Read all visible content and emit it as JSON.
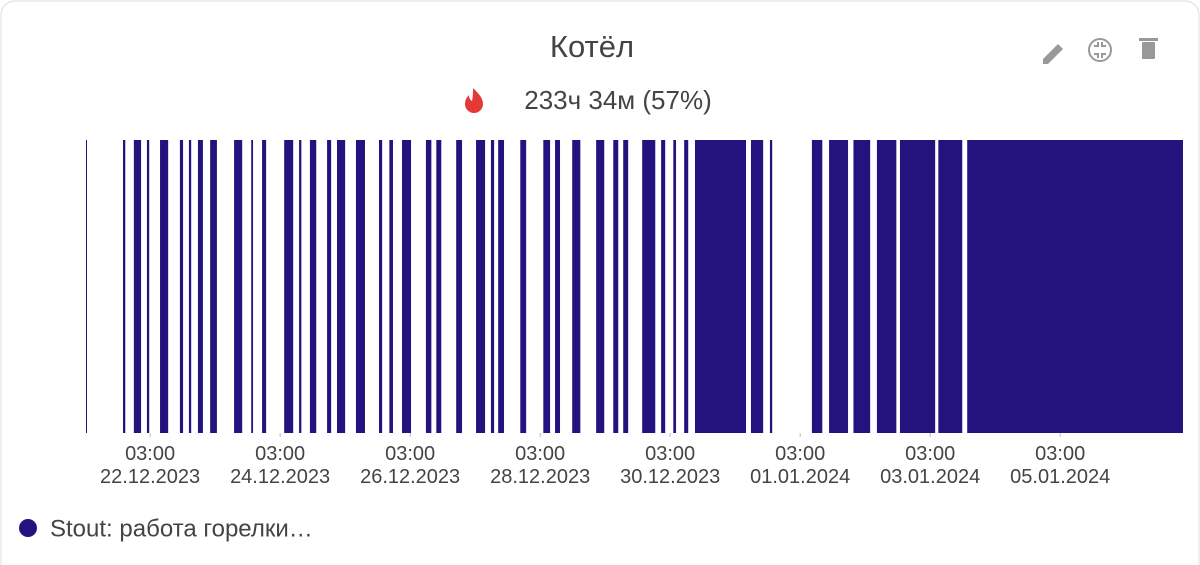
{
  "chart_data": {
    "type": "timeline",
    "title": "Котёл",
    "subtitle": "233ч 34м (57%)",
    "xlim": [
      "2023-12-21T03:20",
      "2024-01-07T00:20"
    ],
    "xticks": [
      {
        "value": "2023-12-22T03:00",
        "label": "03:00\n22.12.2023"
      },
      {
        "value": "2023-12-24T03:00",
        "label": "03:00\n24.12.2023"
      },
      {
        "value": "2023-12-26T03:00",
        "label": "03:00\n26.12.2023"
      },
      {
        "value": "2023-12-28T03:00",
        "label": "03:00\n28.12.2023"
      },
      {
        "value": "2023-12-30T03:00",
        "label": "03:00\n30.12.2023"
      },
      {
        "value": "2024-01-01T03:00",
        "label": "03:00\n01.01.2024"
      },
      {
        "value": "2024-01-03T03:00",
        "label": "03:00\n03.01.2024"
      },
      {
        "value": "2024-01-05T03:00",
        "label": "03:00\n05.01.2024"
      }
    ],
    "series": [
      {
        "name": "Stout: работа горелки…",
        "color": "#24137f",
        "intervals": [
          [
            "2023-12-21T03:20",
            "2023-12-21T03:40"
          ],
          [
            "2023-12-21T17:00",
            "2023-12-21T17:50"
          ],
          [
            "2023-12-21T21:00",
            "2023-12-21T23:40"
          ],
          [
            "2023-12-22T01:50",
            "2023-12-22T02:40"
          ],
          [
            "2023-12-22T06:40",
            "2023-12-22T09:40"
          ],
          [
            "2023-12-22T14:00",
            "2023-12-22T15:10"
          ],
          [
            "2023-12-22T17:20",
            "2023-12-22T18:10"
          ],
          [
            "2023-12-22T20:40",
            "2023-12-22T22:30"
          ],
          [
            "2023-12-23T01:10",
            "2023-12-23T03:40"
          ],
          [
            "2023-12-23T10:00",
            "2023-12-23T13:00"
          ],
          [
            "2023-12-23T16:20",
            "2023-12-23T17:00"
          ],
          [
            "2023-12-23T20:20",
            "2023-12-23T21:50"
          ],
          [
            "2023-12-24T04:30",
            "2023-12-24T07:50"
          ],
          [
            "2023-12-24T10:00",
            "2023-12-24T10:50"
          ],
          [
            "2023-12-24T14:00",
            "2023-12-24T16:20"
          ],
          [
            "2023-12-24T20:20",
            "2023-12-24T21:50"
          ],
          [
            "2023-12-25T00:00",
            "2023-12-25T03:00"
          ],
          [
            "2023-12-25T07:00",
            "2023-12-25T10:20"
          ],
          [
            "2023-12-25T15:30",
            "2023-12-25T16:40"
          ],
          [
            "2023-12-25T19:20",
            "2023-12-25T20:40"
          ],
          [
            "2023-12-26T00:00",
            "2023-12-26T03:20"
          ],
          [
            "2023-12-26T08:50",
            "2023-12-26T10:50"
          ],
          [
            "2023-12-26T12:40",
            "2023-12-26T14:30"
          ],
          [
            "2023-12-26T20:00",
            "2023-12-26T22:10"
          ],
          [
            "2023-12-27T03:20",
            "2023-12-27T06:40"
          ],
          [
            "2023-12-27T08:50",
            "2023-12-27T10:00"
          ],
          [
            "2023-12-27T11:30",
            "2023-12-27T13:40"
          ],
          [
            "2023-12-27T19:40",
            "2023-12-27T21:50"
          ],
          [
            "2023-12-28T04:10",
            "2023-12-28T06:40"
          ],
          [
            "2023-12-28T08:30",
            "2023-12-28T10:20"
          ],
          [
            "2023-12-28T14:50",
            "2023-12-28T17:50"
          ],
          [
            "2023-12-28T23:40",
            "2023-12-29T02:40"
          ],
          [
            "2023-12-29T06:00",
            "2023-12-29T07:50"
          ],
          [
            "2023-12-29T09:40",
            "2023-12-29T11:30"
          ],
          [
            "2023-12-29T16:40",
            "2023-12-29T21:30"
          ],
          [
            "2023-12-29T23:40",
            "2023-12-30T01:10"
          ],
          [
            "2023-12-30T04:10",
            "2023-12-30T05:10"
          ],
          [
            "2023-12-30T08:10",
            "2023-12-30T09:40"
          ],
          [
            "2023-12-30T12:10",
            "2023-12-31T07:00"
          ],
          [
            "2023-12-31T08:50",
            "2023-12-31T13:20"
          ],
          [
            "2023-12-31T15:50",
            "2023-12-31T16:40"
          ],
          [
            "2024-01-01T07:20",
            "2024-01-01T11:10"
          ],
          [
            "2024-01-01T13:40",
            "2024-01-01T20:40"
          ],
          [
            "2024-01-01T22:40",
            "2024-01-02T04:50"
          ],
          [
            "2024-01-02T07:20",
            "2024-01-02T14:30"
          ],
          [
            "2024-01-02T15:50",
            "2024-01-03T04:50"
          ],
          [
            "2024-01-03T06:00",
            "2024-01-03T14:50"
          ],
          [
            "2024-01-03T16:40",
            "2024-01-07T00:20"
          ]
        ]
      }
    ],
    "legend": "bottom-left"
  }
}
